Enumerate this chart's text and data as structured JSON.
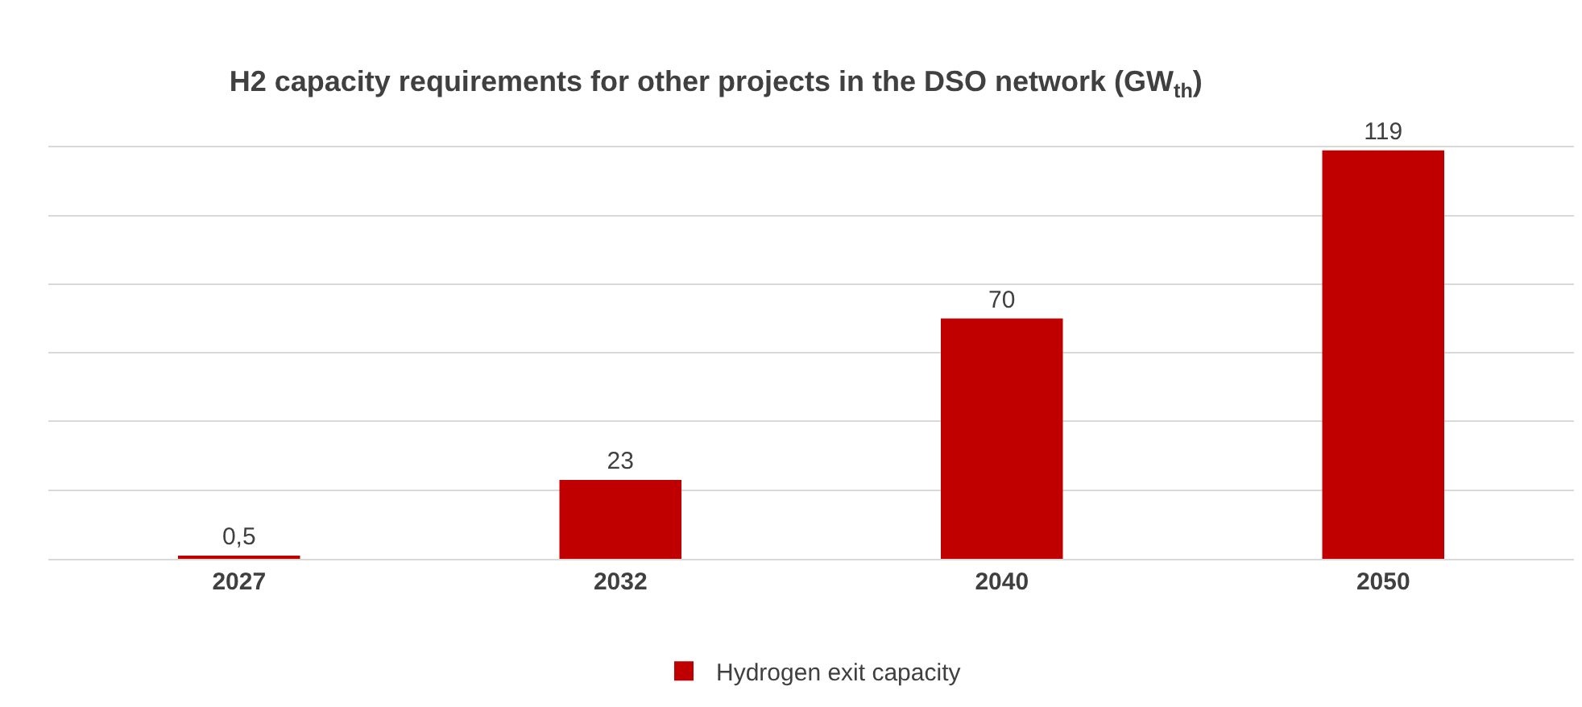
{
  "chart_data": {
    "type": "bar",
    "title": "H2 capacity requirements for other projects in the DSO network (GW$_{th}$)",
    "categories": [
      "2027",
      "2032",
      "2040",
      "2050"
    ],
    "series": [
      {
        "name": "Hydrogen exit capacity",
        "color": "#c00000",
        "values": [
          0.5,
          23,
          70,
          119
        ],
        "value_labels": [
          "0,5",
          "23",
          "70",
          "119"
        ]
      }
    ],
    "grid": "y",
    "legend": "bottom",
    "tick_labels": "x"
  }
}
